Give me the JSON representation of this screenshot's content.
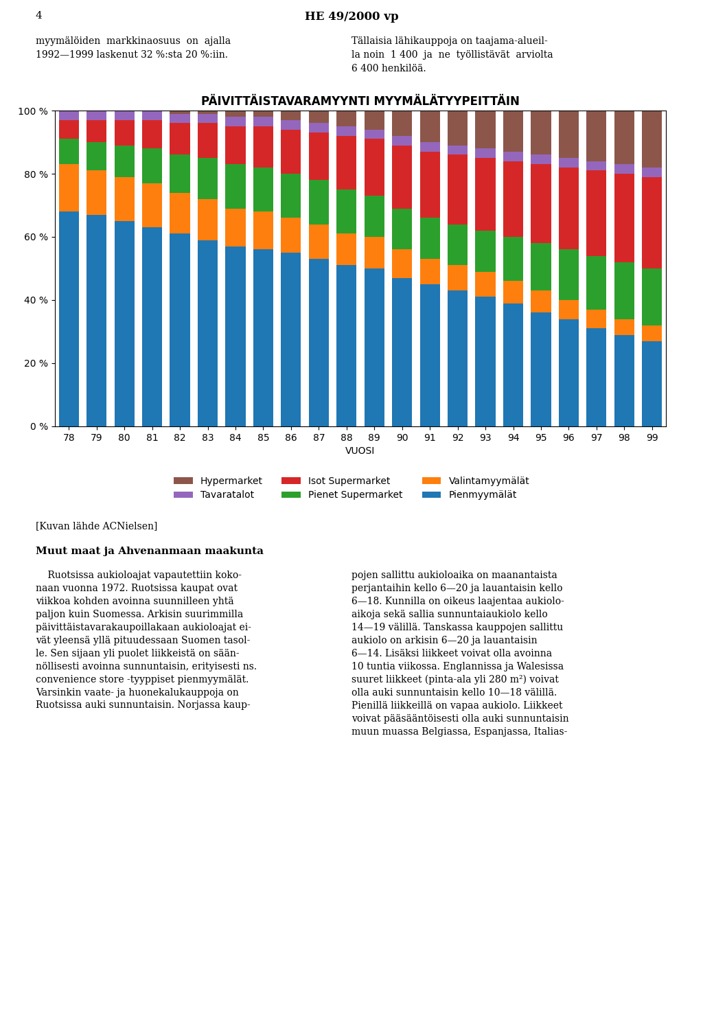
{
  "chart_data": {
    "type": "bar",
    "stacked": true,
    "title": "PÄIVITTÄISTAVARAMYYNTI MYYMÄLÄTYYPEITTÄIN",
    "xlabel": "VUOSI",
    "categories": [
      "78",
      "79",
      "80",
      "81",
      "82",
      "83",
      "84",
      "85",
      "86",
      "87",
      "88",
      "89",
      "90",
      "91",
      "92",
      "93",
      "94",
      "95",
      "96",
      "97",
      "98",
      "99"
    ],
    "series": [
      {
        "name": "Pienmyymälät",
        "values": [
          68,
          67,
          65,
          63,
          61,
          59,
          57,
          56,
          55,
          53,
          51,
          50,
          47,
          45,
          43,
          41,
          39,
          36,
          34,
          31,
          29,
          27
        ]
      },
      {
        "name": "Valintamyymälät",
        "values": [
          15,
          14,
          14,
          14,
          13,
          13,
          12,
          12,
          11,
          11,
          10,
          10,
          9,
          8,
          8,
          8,
          7,
          7,
          6,
          6,
          5,
          5
        ]
      },
      {
        "name": "Pienet Supermarket",
        "values": [
          8,
          9,
          10,
          11,
          12,
          13,
          14,
          14,
          14,
          14,
          14,
          13,
          13,
          13,
          13,
          13,
          14,
          15,
          16,
          17,
          18,
          18
        ]
      },
      {
        "name": "Isot Supermarket",
        "values": [
          6,
          7,
          8,
          9,
          10,
          11,
          12,
          13,
          14,
          15,
          17,
          18,
          20,
          21,
          22,
          23,
          24,
          25,
          26,
          27,
          28,
          29
        ]
      },
      {
        "name": "Tavaratalot",
        "values": [
          3,
          3,
          3,
          3,
          3,
          3,
          3,
          3,
          3,
          3,
          3,
          3,
          3,
          3,
          3,
          3,
          3,
          3,
          3,
          3,
          3,
          3
        ]
      },
      {
        "name": "Hypermarket",
        "values": [
          0,
          0,
          0,
          0,
          1,
          1,
          2,
          2,
          3,
          4,
          5,
          6,
          8,
          10,
          11,
          12,
          13,
          14,
          15,
          16,
          17,
          18
        ]
      }
    ],
    "ylim": [
      0,
      100
    ],
    "yticks": [
      {
        "value": 0,
        "label": "0 %"
      },
      {
        "value": 20,
        "label": "20 %"
      },
      {
        "value": 40,
        "label": "40 %"
      },
      {
        "value": 60,
        "label": "60 %"
      },
      {
        "value": 80,
        "label": "80 %"
      },
      {
        "value": 100,
        "label": "100 %"
      }
    ],
    "grid": false,
    "legend": "upper center",
    "annotations": [
      "4",
      "HE 49/2000 vp",
      "myymälöiden  markkinaosuus  on  ajalla",
      "1992—1999 laskenut 32 %:sta 20 %:iin.",
      "Tällaisia lähikauppoja on taajama-alueil-",
      "la noin  1 400  ja  ne  työllistävät  arviolta",
      "6 400 henkilöä.",
      "[Kuvan lähde ACNielsen]",
      "Muut maat ja Ahvenanmaan maakunta",
      "    Ruotsissa aukioloajat vapautettiin koko-\nnaan vuonna 1972. Ruotsissa kaupat ovat\nviikkoa kohden avoinna suunnilleen yhtä\npaljon kuin Suomessa. Arkisin suurimmilla\npäivittäistavarakaupoillakaan aukioloajat ei-\nvät yleensä yllä pituudessaan Suomen tasol-\nle. Sen sijaan yli puolet liikkeistä on sään-\nnöllisesti avoinna sunnuntaisin, erityisesti ns.\nconvenience store -tyyppiset pienmyymälät.\nVarsinkin vaate- ja huonekalukauppoja on\nRuotsissa auki sunnuntaisin. Norjassa kaup-",
      "pojen sallittu aukioloaika on maanantaista\nperjantaihin kello 6—20 ja lauantaisin kello\n6—18. Kunnilla on oikeus laajentaa aukiolo-\naikoja sekä sallia sunnuntaiaukiolo kello\n14—19 välillä. Tanskassa kauppojen sallittu\naukiolo on arkisin 6—20 ja lauantaisin\n6—14. Lisäksi liikkeet voivat olla avoinna\n10 tuntia viikossa. Englannissa ja Walesissa\nsuuret liikkeet (pinta-ala yli 280 m²) voivat\nolla auki sunnuntaisin kello 10—18 välillä.\nPienillä liikkeillä on vapaa aukiolo. Liikkeet\nvoivat pääsääntöisesti olla auki sunnuntaisin\nmuun muassa Belgiassa, Espanjassa, Italias-"
    ]
  }
}
